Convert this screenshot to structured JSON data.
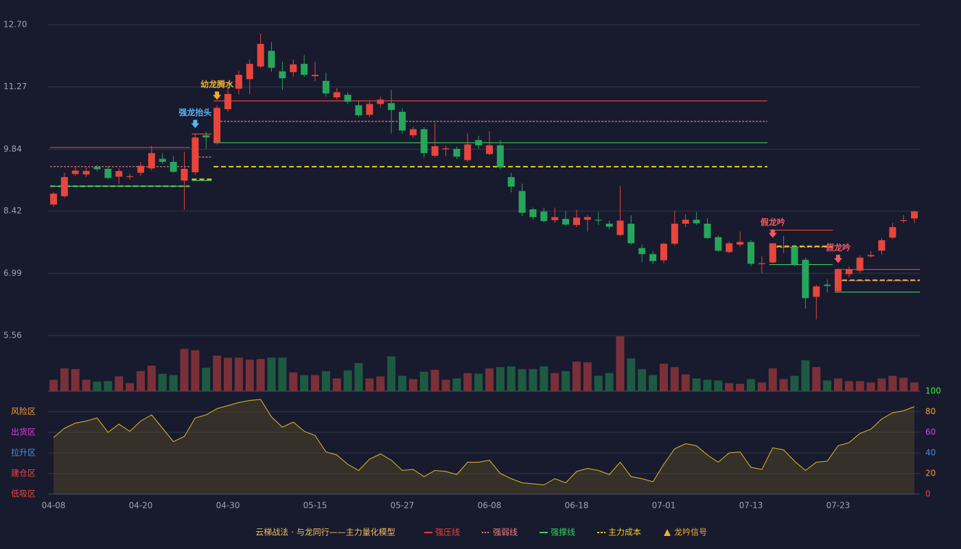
{
  "chart_data": {
    "type": "candlestick",
    "categories": [
      "04-08",
      null,
      null,
      null,
      null,
      null,
      null,
      null,
      "04-20",
      null,
      null,
      null,
      null,
      null,
      null,
      null,
      "04-30",
      null,
      null,
      null,
      null,
      null,
      null,
      null,
      "05-15",
      null,
      null,
      null,
      null,
      null,
      null,
      null,
      "05-27",
      null,
      null,
      null,
      null,
      null,
      null,
      null,
      "06-08",
      null,
      null,
      null,
      null,
      null,
      null,
      null,
      "06-18",
      null,
      null,
      null,
      null,
      null,
      null,
      null,
      "07-01",
      null,
      null,
      null,
      null,
      null,
      null,
      null,
      "07-13",
      null,
      null,
      null,
      null,
      null,
      null,
      null,
      "07-23",
      null,
      null,
      null,
      null,
      null,
      null,
      null
    ],
    "open": [
      8.57,
      8.76,
      9.27,
      9.26,
      9.43,
      9.39,
      9.21,
      9.2,
      9.3,
      9.4,
      9.62,
      9.55,
      9.12,
      9.31,
      10.16,
      10.0,
      10.76,
      11.23,
      11.45,
      11.74,
      12.1,
      11.63,
      11.61,
      11.8,
      11.52,
      11.41,
      11.03,
      11.09,
      10.85,
      10.63,
      10.88,
      10.9,
      10.7,
      10.16,
      10.3,
      9.69,
      9.84,
      9.85,
      9.59,
      10.05,
      9.73,
      9.93,
      9.2,
      8.88,
      8.46,
      8.41,
      8.21,
      8.24,
      8.1,
      8.22,
      8.22,
      8.13,
      7.87,
      8.13,
      7.57,
      7.43,
      7.29,
      7.67,
      8.13,
      8.22,
      8.13,
      7.82,
      7.48,
      7.65,
      7.71,
      7.2,
      7.24,
      7.58,
      7.6,
      7.3,
      6.45,
      6.73,
      6.58,
      6.97,
      7.05,
      7.38,
      7.51,
      7.81,
      8.19,
      8.25
    ],
    "close": [
      8.82,
      9.2,
      9.35,
      9.34,
      9.38,
      9.18,
      9.34,
      9.22,
      9.46,
      9.75,
      9.55,
      9.32,
      9.39,
      10.11,
      10.11,
      10.79,
      11.11,
      11.55,
      11.8,
      12.26,
      11.71,
      11.47,
      11.79,
      11.55,
      11.55,
      11.12,
      11.15,
      10.93,
      10.62,
      10.88,
      10.98,
      10.74,
      10.27,
      10.3,
      9.75,
      9.91,
      9.86,
      9.67,
      9.95,
      9.93,
      9.93,
      9.42,
      8.98,
      8.38,
      8.28,
      8.19,
      8.28,
      8.11,
      8.27,
      8.28,
      8.2,
      8.06,
      8.2,
      7.68,
      7.43,
      7.27,
      7.67,
      8.13,
      8.22,
      8.14,
      7.8,
      7.51,
      7.68,
      7.71,
      7.21,
      7.22,
      7.68,
      7.6,
      7.2,
      6.42,
      6.69,
      6.7,
      7.07,
      7.08,
      7.35,
      7.41,
      7.75,
      8.05,
      8.21,
      8.41
    ],
    "high": [
      8.85,
      9.3,
      9.45,
      9.42,
      9.48,
      9.45,
      9.4,
      9.28,
      9.55,
      9.92,
      9.75,
      9.68,
      9.78,
      10.2,
      10.25,
      10.85,
      11.25,
      11.65,
      11.9,
      12.5,
      12.3,
      11.85,
      11.9,
      12.0,
      11.85,
      11.6,
      11.25,
      11.15,
      10.95,
      10.95,
      11.05,
      11.2,
      10.78,
      10.36,
      10.35,
      10.45,
      9.92,
      9.9,
      10.2,
      10.15,
      10.25,
      10.05,
      9.3,
      9.05,
      8.5,
      8.5,
      8.5,
      8.42,
      8.45,
      8.33,
      8.4,
      8.2,
      9.0,
      8.32,
      7.65,
      7.5,
      7.7,
      8.42,
      8.35,
      8.4,
      8.25,
      7.86,
      7.72,
      7.95,
      7.75,
      7.38,
      7.68,
      7.85,
      7.65,
      7.35,
      6.72,
      6.85,
      7.1,
      7.15,
      7.4,
      7.5,
      7.8,
      8.15,
      8.33,
      8.43
    ],
    "low": [
      8.52,
      8.72,
      9.22,
      9.2,
      9.33,
      9.15,
      9.05,
      9.15,
      9.22,
      9.35,
      9.5,
      9.3,
      8.45,
      9.25,
      9.85,
      9.95,
      10.7,
      11.1,
      11.1,
      11.7,
      11.62,
      11.2,
      11.5,
      11.5,
      11.4,
      11.05,
      10.98,
      10.88,
      10.58,
      10.58,
      10.8,
      10.2,
      10.2,
      10.1,
      9.65,
      9.65,
      9.68,
      9.62,
      9.55,
      9.85,
      9.7,
      9.38,
      8.85,
      8.3,
      8.22,
      8.15,
      8.15,
      8.08,
      8.05,
      7.95,
      8.1,
      8.0,
      7.85,
      7.65,
      7.25,
      7.2,
      7.22,
      7.62,
      8.05,
      8.1,
      7.78,
      7.48,
      7.45,
      7.6,
      7.15,
      6.99,
      7.22,
      7.45,
      7.15,
      6.18,
      5.93,
      6.55,
      6.55,
      6.9,
      7.0,
      7.35,
      7.42,
      7.78,
      8.15,
      8.15
    ],
    "volume": [
      17,
      34,
      33,
      17,
      14,
      15,
      22,
      12,
      30,
      38,
      26,
      24,
      63,
      61,
      35,
      53,
      50,
      50,
      47,
      48,
      50,
      50,
      28,
      24,
      24,
      30,
      19,
      31,
      42,
      19,
      22,
      52,
      23,
      18,
      29,
      32,
      17,
      19,
      27,
      26,
      34,
      36,
      37,
      33,
      33,
      37,
      27,
      30,
      44,
      43,
      23,
      27,
      82,
      49,
      33,
      24,
      41,
      36,
      25,
      19,
      17,
      16,
      12,
      11,
      18,
      13,
      34,
      18,
      23,
      46,
      36,
      16,
      19,
      15,
      15,
      13,
      19,
      23,
      20,
      13
    ],
    "volume_max": 82,
    "indicator": [
      55,
      64,
      69,
      71,
      74,
      60,
      68,
      61,
      71,
      77,
      64,
      51,
      56,
      74,
      77,
      83,
      86,
      89,
      91,
      92,
      75,
      65,
      70,
      61,
      57,
      41,
      38,
      29,
      23,
      34,
      39,
      33,
      23,
      24,
      17,
      23,
      22,
      19,
      31,
      31,
      33,
      20,
      15,
      11,
      10,
      9,
      15,
      11,
      22,
      25,
      23,
      19,
      31,
      17,
      15,
      12,
      29,
      44,
      49,
      47,
      38,
      31,
      40,
      41,
      26,
      24,
      45,
      43,
      32,
      23,
      31,
      32,
      47,
      50,
      59,
      63,
      73,
      79,
      81,
      85
    ],
    "ylim": [
      5.56,
      12.7
    ],
    "yticks": [
      {
        "value": 12.7,
        "label": "12.70"
      },
      {
        "value": 11.27,
        "label": "11.27"
      },
      {
        "value": 9.84,
        "label": "9.84"
      },
      {
        "value": 8.42,
        "label": "8.42"
      },
      {
        "value": 6.99,
        "label": "6.99"
      },
      {
        "value": 5.56,
        "label": "5.56"
      }
    ],
    "y2lim": [
      0,
      100
    ],
    "y2ticks": [
      0,
      20,
      40,
      60,
      80,
      100
    ],
    "y2tick_colors": [
      "#e84545",
      "#f0a030",
      "#4a90e2",
      "#e040e0",
      "#f0a030",
      "#3cf03c"
    ],
    "zones": [
      {
        "value": 80,
        "label": "风险区",
        "color": "#f0a030"
      },
      {
        "value": 60,
        "label": "出货区",
        "color": "#e040e0"
      },
      {
        "value": 40,
        "label": "拉升区",
        "color": "#4a90e2"
      },
      {
        "value": 20,
        "label": "建仓区",
        "color": "#e84545"
      },
      {
        "value": 0,
        "label": "低吸区",
        "color": "#e84545"
      }
    ],
    "levels": [
      {
        "from": 0,
        "to": 12,
        "resistance": 9.88,
        "weak": 9.44,
        "support": 8.99,
        "cost": 8.99
      },
      {
        "from": 13,
        "to": 14,
        "resistance": 10.19,
        "weak": 9.66,
        "support": 9.12,
        "cost": 9.15
      },
      {
        "from": 15,
        "to": 65,
        "resistance": 10.95,
        "weak": 10.48,
        "support": 9.99,
        "cost": 9.44
      },
      {
        "from": 66,
        "to": 71,
        "resistance": 7.98,
        "weak": 7.59,
        "support": 7.19,
        "cost": 7.61
      },
      {
        "from": 72,
        "to": 79,
        "resistance": 7.08,
        "weak": 6.82,
        "support": 6.56,
        "cost": 6.83
      }
    ],
    "signals": [
      {
        "index": 13,
        "label": "强龙抬头",
        "color": "#5ab4f0"
      },
      {
        "index": 15,
        "label": "幼龙腾水",
        "color": "#f0b030"
      },
      {
        "index": 66,
        "label": "假龙吟",
        "color": "#f05a64"
      },
      {
        "index": 72,
        "label": "假龙吟",
        "color": "#f05a64"
      }
    ],
    "colors": {
      "up": "#e8453c",
      "down": "#26a65b",
      "up_vol": "#7a3038",
      "down_vol": "#1e5a42",
      "resistance": "#e8453c",
      "weak": "#f08080",
      "support": "#3cd060",
      "cost": "#f0d020",
      "indicator": "#e0c020"
    },
    "legend": {
      "title": "云梯战法 · 与龙同行——主力量化模型",
      "items": [
        {
          "name": "强压线",
          "color": "#e8453c",
          "key": "resistance"
        },
        {
          "name": "强弱线",
          "color": "#f08080",
          "key": "weak"
        },
        {
          "name": "强撑线",
          "color": "#3cd060",
          "key": "support"
        },
        {
          "name": "主力成本",
          "color": "#f0d020",
          "key": "cost"
        },
        {
          "name": "龙吟信号",
          "color": "#f0b030",
          "key": "signal"
        }
      ]
    }
  }
}
